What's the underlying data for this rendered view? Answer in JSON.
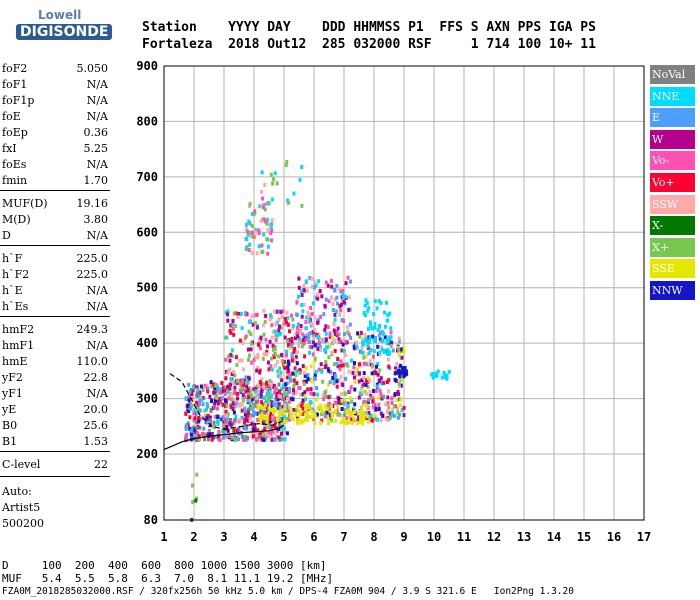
{
  "logo": {
    "line1": "Lowell",
    "line2": "DIGISONDE"
  },
  "header": {
    "row1": "Station    YYYY DAY    DDD HHMMSS P1  FFS S AXN PPS IGA PS",
    "row2": "Fortaleza  2018 Out12  285 032000 RSF     1 714 100 10+ 11"
  },
  "params": [
    {
      "name": "foF2",
      "value": "5.050"
    },
    {
      "name": "foF1",
      "value": "N/A"
    },
    {
      "name": "foF1p",
      "value": "N/A"
    },
    {
      "name": "foE",
      "value": "N/A"
    },
    {
      "name": "foEp",
      "value": "0.36"
    },
    {
      "name": "fxI",
      "value": "5.25"
    },
    {
      "name": "foEs",
      "value": "N/A"
    },
    {
      "name": "fmin",
      "value": "1.70"
    },
    {
      "name": "MUF(D)",
      "value": "19.16"
    },
    {
      "name": "M(D)",
      "value": "3.80"
    },
    {
      "name": "D",
      "value": "N/A"
    },
    {
      "name": "h`F",
      "value": "225.0"
    },
    {
      "name": "h`F2",
      "value": "225.0"
    },
    {
      "name": "h`E",
      "value": "N/A"
    },
    {
      "name": "h`Es",
      "value": "N/A"
    },
    {
      "name": "hmF2",
      "value": "249.3"
    },
    {
      "name": "hmF1",
      "value": "N/A"
    },
    {
      "name": "hmE",
      "value": "110.0"
    },
    {
      "name": "yF2",
      "value": "22.8"
    },
    {
      "name": "yF1",
      "value": "N/A"
    },
    {
      "name": "yE",
      "value": "20.0"
    },
    {
      "name": "B0",
      "value": "25.6"
    },
    {
      "name": "B1",
      "value": "1.53"
    },
    {
      "name": "C-level",
      "value": "22"
    }
  ],
  "auto": {
    "line1": "Auto:",
    "line2": "Artist5",
    "line3": "500200"
  },
  "legend": [
    {
      "label": "NoVal",
      "color": "#808080"
    },
    {
      "label": "NNE",
      "color": "#00dcff"
    },
    {
      "label": "E",
      "color": "#4c9fff"
    },
    {
      "label": "W",
      "color": "#b4008c"
    },
    {
      "label": "Vo-",
      "color": "#ff50b4"
    },
    {
      "label": "Vo+",
      "color": "#ff0032"
    },
    {
      "label": "SSW",
      "color": "#ffaaaa"
    },
    {
      "label": "X-",
      "color": "#007800"
    },
    {
      "label": "X+",
      "color": "#78c850"
    },
    {
      "label": "SSE",
      "color": "#e6e600"
    },
    {
      "label": "NNW",
      "color": "#1414c8"
    }
  ],
  "footer": {
    "d_row": "D     100  200  400  600  800 1000 1500 3000 [km]",
    "muf_row": "MUF   5.4  5.5  5.8  6.3  7.0  8.1 11.1 19.2 [MHz]",
    "info": "FZA0M_2018285032000.RSF / 320fx256h 50 kHz 5.0 km / DPS-4 FZA0M 904 / 3.9 S 321.6 E   Ion2Png 1.3.20"
  },
  "chart_data": {
    "type": "scatter",
    "title": "",
    "xlabel": "",
    "ylabel": "",
    "xlim": [
      1,
      17
    ],
    "ylim": [
      80,
      900
    ],
    "x_ticks": [
      "1",
      "2",
      "3",
      "4",
      "5",
      "6",
      "7",
      "8",
      "9",
      "10",
      "11",
      "12",
      "13",
      "14",
      "15",
      "16",
      "17"
    ],
    "y_ticks": [
      "80",
      "200",
      "300",
      "400",
      "500",
      "600",
      "700",
      "800",
      "900"
    ],
    "grid": true,
    "legend_position": "right",
    "trace": {
      "name": "",
      "x": [
        1.0,
        1.6,
        2.0,
        2.5,
        3.0,
        3.5,
        4.0,
        4.5,
        4.8,
        5.0
      ],
      "y": [
        208,
        222,
        228,
        232,
        235,
        238,
        240,
        242,
        246,
        252
      ]
    },
    "profile": {
      "name": "",
      "x": [
        1.2,
        1.6,
        1.9,
        2.2,
        2.6,
        3.0,
        3.4,
        3.8,
        4.2,
        4.6,
        5.0
      ],
      "y": [
        345,
        330,
        300,
        270,
        250,
        245,
        248,
        252,
        255,
        252,
        260
      ]
    },
    "echo_clusters": [
      {
        "x_range": [
          1.7,
          5.1
        ],
        "y_range": [
          225,
          330
        ],
        "colors": [
          "W",
          "Vo-",
          "Vo+",
          "NNE",
          "E",
          "SSW",
          "X+",
          "NNW",
          "NoVal"
        ],
        "count": 560
      },
      {
        "x_range": [
          3.0,
          5.4
        ],
        "y_range": [
          300,
          460
        ],
        "colors": [
          "W",
          "Vo-",
          "Vo+",
          "SSW",
          "NNE",
          "X+"
        ],
        "count": 260
      },
      {
        "x_range": [
          5.0,
          9.0
        ],
        "y_range": [
          260,
          420
        ],
        "colors": [
          "W",
          "Vo-",
          "Vo+",
          "NNE",
          "E",
          "SSW",
          "SSE",
          "X+",
          "NNW"
        ],
        "count": 520
      },
      {
        "x_range": [
          5.4,
          7.2
        ],
        "y_range": [
          400,
          520
        ],
        "colors": [
          "W",
          "Vo-",
          "SSW",
          "NNE",
          "E"
        ],
        "count": 150
      },
      {
        "x_range": [
          4.1,
          7.8
        ],
        "y_range": [
          255,
          290
        ],
        "colors": [
          "SSE"
        ],
        "count": 110
      },
      {
        "x_range": [
          7.6,
          8.6
        ],
        "y_range": [
          380,
          480
        ],
        "colors": [
          "NNE"
        ],
        "count": 60
      },
      {
        "x_range": [
          8.8,
          9.1
        ],
        "y_range": [
          340,
          360
        ],
        "colors": [
          "NNW"
        ],
        "count": 20
      },
      {
        "x_range": [
          9.9,
          10.5
        ],
        "y_range": [
          335,
          350
        ],
        "colors": [
          "NNE"
        ],
        "count": 14
      },
      {
        "x_range": [
          3.7,
          4.6
        ],
        "y_range": [
          560,
          660
        ],
        "colors": [
          "NNE",
          "SSW",
          "X+",
          "Vo-"
        ],
        "count": 60
      },
      {
        "x_range": [
          4.2,
          5.6
        ],
        "y_range": [
          640,
          740
        ],
        "colors": [
          "NNE",
          "SSW",
          "Vo-",
          "X+"
        ],
        "count": 20
      },
      {
        "x_range": [
          1.9,
          2.1
        ],
        "y_range": [
          80,
          180
        ],
        "colors": [
          "X+",
          "X-"
        ],
        "count": 6
      }
    ]
  }
}
